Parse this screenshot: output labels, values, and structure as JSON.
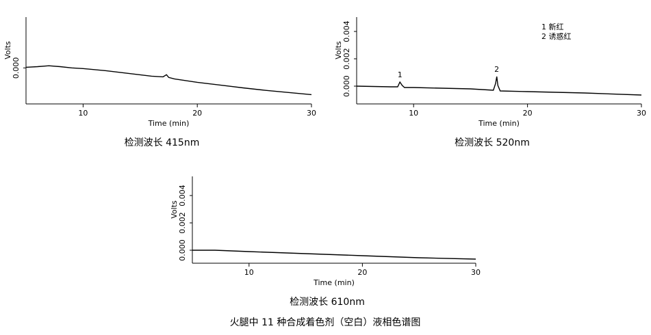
{
  "chart_data": [
    {
      "type": "line",
      "xlabel": "Time (min)",
      "ylabel": "Volts",
      "caption": "检测波长 415nm",
      "xlim": [
        5,
        30
      ],
      "xticks": [
        10,
        20,
        30
      ],
      "ylim": [
        -0.0017,
        0.0024
      ],
      "yticks": [
        {
          "value": 0,
          "label": "0.000"
        }
      ],
      "color": "#000000",
      "x": [
        5,
        6,
        7,
        8,
        9,
        10,
        12,
        14,
        16,
        17,
        17.3,
        17.5,
        18,
        20,
        22,
        24,
        26,
        28,
        30
      ],
      "values": [
        3e-05,
        6e-05,
        0.0001,
        6e-05,
        0,
        -3e-05,
        -0.00013,
        -0.00026,
        -0.00039,
        -0.00042,
        -0.00032,
        -0.00045,
        -0.00052,
        -0.00068,
        -0.00081,
        -0.00094,
        -0.00106,
        -0.00116,
        -0.00126
      ]
    },
    {
      "type": "line",
      "xlabel": "Time (min)",
      "ylabel": "Volts",
      "caption": "检测波长 520nm",
      "xlim": [
        5,
        30
      ],
      "xticks": [
        10,
        20,
        30
      ],
      "ylim": [
        -0.0013,
        0.00505
      ],
      "yticks": [
        {
          "value": 0,
          "label": "0.000"
        },
        {
          "value": 0.002,
          "label": "0.002"
        },
        {
          "value": 0.004,
          "label": "0.004"
        }
      ],
      "color": "#000000",
      "x": [
        5,
        8,
        8.6,
        8.8,
        9,
        9.2,
        10,
        15,
        17,
        17.2,
        17.3,
        17.4,
        17.6,
        20,
        25,
        30
      ],
      "values": [
        0,
        -5e-05,
        -5e-05,
        0.0003,
        5e-05,
        -0.0001,
        -0.0001,
        -0.0002,
        -0.0003,
        0.0002,
        0.0007,
        5e-05,
        -0.00035,
        -0.0004,
        -0.0005,
        -0.00065
      ],
      "annotations": [
        {
          "text": "1",
          "x": 8.8,
          "y": 0.0008
        },
        {
          "text": "2",
          "x": 17.3,
          "y": 0.0012
        }
      ],
      "legend": [
        "1 新红",
        "2 诱惑红"
      ]
    },
    {
      "type": "line",
      "xlabel": "Time (min)",
      "ylabel": "Volts",
      "caption": "检测波长 610nm",
      "xlim": [
        5,
        30
      ],
      "xticks": [
        10,
        20,
        30
      ],
      "ylim": [
        -0.00095,
        0.0054
      ],
      "yticks": [
        {
          "value": 0,
          "label": "0.000"
        },
        {
          "value": 0.002,
          "label": "0.002"
        },
        {
          "value": 0.004,
          "label": "0.004"
        }
      ],
      "color": "#000000",
      "x": [
        5,
        7,
        10,
        15,
        20,
        25,
        30
      ],
      "values": [
        0,
        0,
        -0.0001,
        -0.00025,
        -0.0004,
        -0.00055,
        -0.00065
      ]
    }
  ],
  "figure_caption": "火腿中 11 种合成着色剂（空白）液相色谱图"
}
